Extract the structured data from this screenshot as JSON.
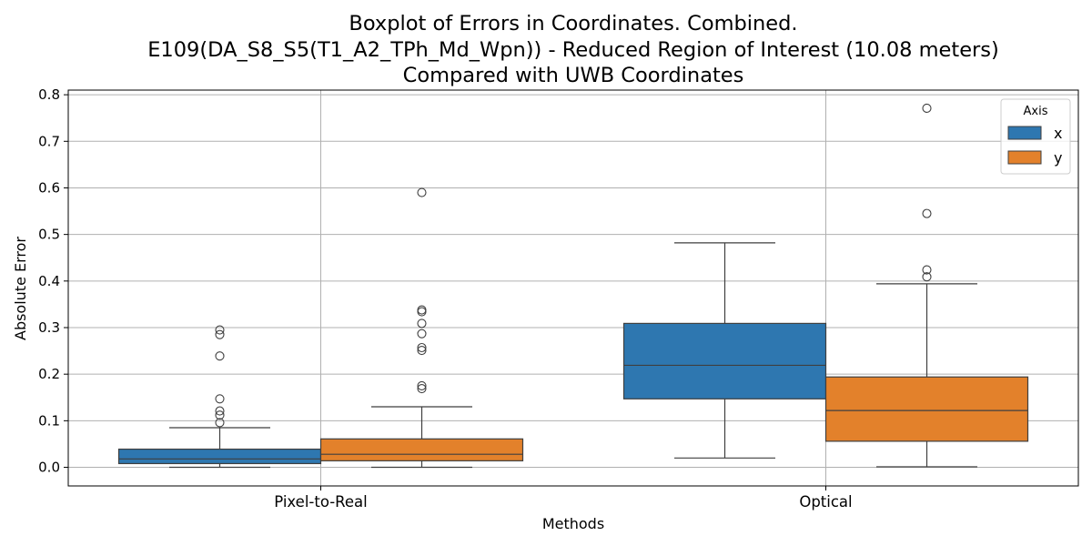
{
  "chart_data": {
    "type": "box",
    "title": [
      "Boxplot of Errors in Coordinates. Combined.",
      "E109(DA_S8_S5(T1_A2_TPh_Md_Wpn)) - Reduced Region of Interest (10.08 meters)",
      "Compared with UWB Coordinates"
    ],
    "xlabel": "Methods",
    "ylabel": "Absolute Error",
    "categories": [
      "Pixel-to-Real",
      "Optical"
    ],
    "ylim": [
      -0.04,
      0.81
    ],
    "yticks": [
      "0.0",
      "0.1",
      "0.2",
      "0.3",
      "0.4",
      "0.5",
      "0.6",
      "0.7",
      "0.8"
    ],
    "grid": true,
    "legend": {
      "title": "Axis",
      "placement": "top-right"
    },
    "series": [
      {
        "name": "x",
        "color": "#2e77b0",
        "boxes": [
          {
            "whisker_low": 0.0,
            "q1": 0.008,
            "median": 0.018,
            "q3": 0.039,
            "whisker_high": 0.085,
            "outliers": [
              0.096,
              0.112,
              0.121,
              0.147,
              0.239,
              0.285,
              0.295
            ]
          },
          {
            "whisker_low": 0.02,
            "q1": 0.147,
            "median": 0.219,
            "q3": 0.309,
            "whisker_high": 0.482,
            "outliers": []
          }
        ]
      },
      {
        "name": "y",
        "color": "#e3812b",
        "boxes": [
          {
            "whisker_low": 0.0,
            "q1": 0.014,
            "median": 0.028,
            "q3": 0.061,
            "whisker_high": 0.13,
            "outliers": [
              0.169,
              0.175,
              0.251,
              0.257,
              0.287,
              0.309,
              0.334,
              0.338,
              0.59
            ]
          },
          {
            "whisker_low": 0.001,
            "q1": 0.056,
            "median": 0.122,
            "q3": 0.194,
            "whisker_high": 0.394,
            "outliers": [
              0.409,
              0.424,
              0.545,
              0.771
            ]
          }
        ]
      }
    ]
  }
}
